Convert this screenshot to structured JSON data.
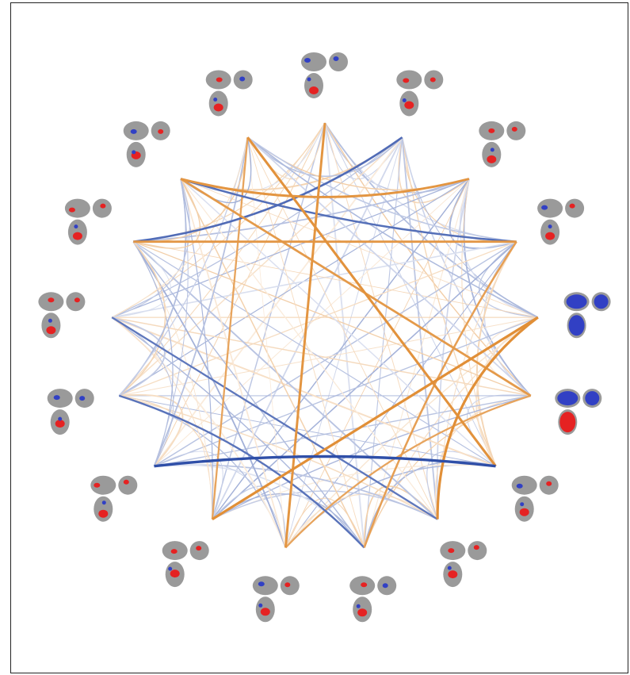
{
  "figure": {
    "type": "connectivity-circle",
    "node_count": 17,
    "colors": {
      "positive": "#e08a2e",
      "negative": "#2f4fa8",
      "brain": "#9a9a9a",
      "activation": "#e52222",
      "deactivation": "#3140c4"
    },
    "nodes": [
      {
        "id": 1,
        "icon": "brain-slices-icon"
      },
      {
        "id": 2,
        "icon": "brain-slices-icon"
      },
      {
        "id": 3,
        "icon": "brain-slices-icon"
      },
      {
        "id": 4,
        "icon": "brain-slices-icon"
      },
      {
        "id": 5,
        "icon": "brain-slices-icon"
      },
      {
        "id": 6,
        "icon": "brain-slices-icon"
      },
      {
        "id": 7,
        "icon": "brain-slices-icon"
      },
      {
        "id": 8,
        "icon": "brain-slices-icon"
      },
      {
        "id": 9,
        "icon": "brain-slices-icon"
      },
      {
        "id": 10,
        "icon": "brain-slices-icon"
      },
      {
        "id": 11,
        "icon": "brain-slices-icon"
      },
      {
        "id": 12,
        "icon": "brain-slices-icon"
      },
      {
        "id": 13,
        "icon": "brain-slices-icon"
      },
      {
        "id": 14,
        "icon": "brain-slices-icon"
      },
      {
        "id": 15,
        "icon": "brain-slices-icon"
      },
      {
        "id": 16,
        "icon": "brain-slices-icon"
      },
      {
        "id": 17,
        "icon": "brain-slices-icon"
      }
    ],
    "strong_edges": [
      {
        "from": 6,
        "to": 11,
        "sign": "negative",
        "strength": 1.0
      },
      {
        "from": 10,
        "to": 4,
        "sign": "positive",
        "strength": 0.9
      },
      {
        "from": 7,
        "to": 4,
        "sign": "positive",
        "strength": 0.9
      },
      {
        "from": 6,
        "to": 16,
        "sign": "positive",
        "strength": 0.85
      },
      {
        "from": 9,
        "to": 0,
        "sign": "positive",
        "strength": 0.8
      },
      {
        "from": 15,
        "to": 2,
        "sign": "positive",
        "strength": 0.8
      },
      {
        "from": 14,
        "to": 3,
        "sign": "positive",
        "strength": 0.75
      },
      {
        "from": 15,
        "to": 5,
        "sign": "positive",
        "strength": 0.7
      },
      {
        "from": 14,
        "to": 1,
        "sign": "negative",
        "strength": 0.65
      },
      {
        "from": 15,
        "to": 3,
        "sign": "negative",
        "strength": 0.6
      },
      {
        "from": 8,
        "to": 3,
        "sign": "positive",
        "strength": 0.6
      },
      {
        "from": 8,
        "to": 12,
        "sign": "negative",
        "strength": 0.55
      },
      {
        "from": 5,
        "to": 9,
        "sign": "positive",
        "strength": 0.5
      },
      {
        "from": 7,
        "to": 13,
        "sign": "negative",
        "strength": 0.5
      },
      {
        "from": 10,
        "to": 16,
        "sign": "positive",
        "strength": 0.5
      }
    ]
  }
}
